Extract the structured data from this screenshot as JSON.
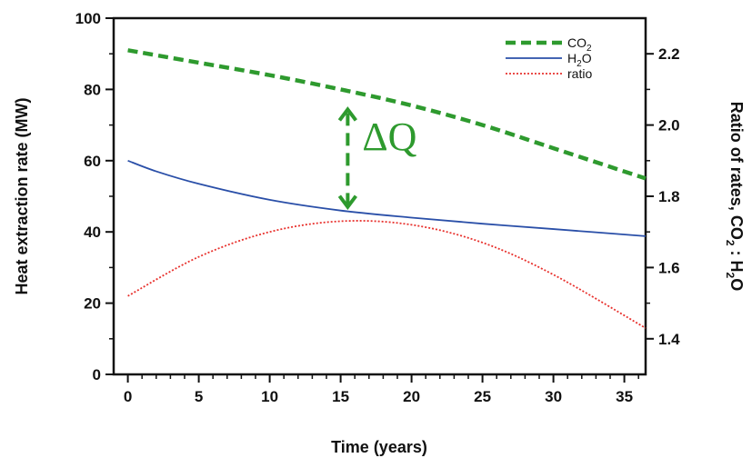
{
  "chart_data": {
    "type": "line",
    "xlabel": "Time (years)",
    "ylabel": "Heat extraction rate (MW)",
    "y2label": {
      "prefix": "Ratio of rates, CO",
      "sub1": "2",
      "mid": " : H",
      "sub2": "2",
      "suffix": "O"
    },
    "xlim": [
      -1,
      36.5
    ],
    "ylim": [
      0,
      100
    ],
    "y2lim": [
      1.3,
      2.3
    ],
    "xticks": [
      0,
      5,
      10,
      15,
      20,
      25,
      30,
      35
    ],
    "yticks": [
      0,
      20,
      40,
      60,
      80,
      100
    ],
    "y2ticks": [
      1.4,
      1.6,
      1.8,
      2.0,
      2.2
    ],
    "y2ticklabels": [
      "1.4",
      "1.6",
      "1.8",
      "2.0",
      "2.2"
    ],
    "legend_position": "top-right",
    "series": [
      {
        "name": "CO2",
        "legend_main": "CO",
        "legend_sub": "2",
        "legend_tail": "",
        "axis": "left",
        "style": "dashed",
        "color": "#2e9a2e",
        "x": [
          0,
          5,
          10,
          15,
          20,
          25,
          30,
          36.5
        ],
        "y": [
          91,
          87.5,
          84,
          80,
          75.5,
          70,
          63.5,
          55
        ]
      },
      {
        "name": "H2O",
        "legend_main": "H",
        "legend_sub": "2",
        "legend_tail": "O",
        "axis": "left",
        "style": "solid",
        "color": "#2a4fa8",
        "x": [
          0,
          2,
          5,
          10,
          15,
          20,
          25,
          30,
          36.5
        ],
        "y": [
          60,
          57,
          53.5,
          49,
          46,
          44,
          42.3,
          40.8,
          38.8
        ]
      },
      {
        "name": "ratio",
        "legend_main": "ratio",
        "legend_sub": "",
        "legend_tail": "",
        "axis": "right",
        "style": "dotted",
        "color": "#e8322e",
        "x": [
          0,
          5,
          10,
          15,
          20,
          25,
          30,
          36.5
        ],
        "y": [
          1.52,
          1.63,
          1.7,
          1.73,
          1.72,
          1.67,
          1.58,
          1.43
        ]
      }
    ],
    "annotation": {
      "text": "ΔQ",
      "x": 15.5,
      "y_from": 46,
      "y_to": 80,
      "color": "#2e9a2e"
    }
  }
}
